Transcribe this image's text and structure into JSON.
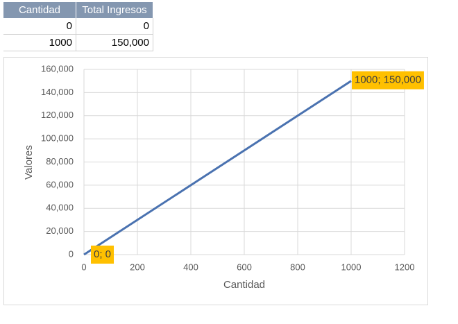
{
  "table": {
    "header": [
      "Cantidad",
      "Total Ingresos"
    ],
    "rows": [
      [
        "0",
        "0"
      ],
      [
        "1000",
        "150,000"
      ]
    ]
  },
  "chart_data": {
    "type": "line",
    "xlabel": "Cantidad",
    "ylabel": "Valores",
    "x": [
      0,
      1000
    ],
    "series": [
      {
        "name": "Total Ingresos",
        "color": "#4a72b0",
        "values": [
          0,
          150000
        ],
        "value_labels": [
          "0; 0",
          "1000; 150,000"
        ]
      }
    ],
    "xlim": [
      0,
      1200
    ],
    "xticks": [
      0,
      200,
      400,
      600,
      800,
      1000,
      1200
    ],
    "ylim": [
      0,
      160000
    ],
    "yticks": [
      0,
      {
        "value": 20000,
        "label": "20,000"
      },
      {
        "value": 40000,
        "label": "40,000"
      },
      {
        "value": 60000,
        "label": "60,000"
      },
      {
        "value": 80000,
        "label": "80,000"
      },
      {
        "value": 100000,
        "label": "100,000"
      },
      {
        "value": 120000,
        "label": "120,000"
      },
      {
        "value": 140000,
        "label": "140,000"
      },
      {
        "value": 160000,
        "label": "160,000"
      }
    ],
    "grid": true,
    "label_color": "#ffc000"
  }
}
